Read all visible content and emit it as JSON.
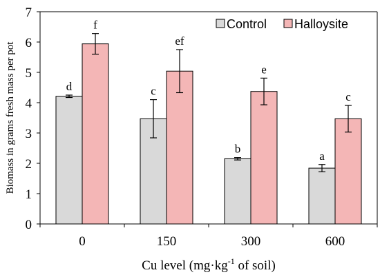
{
  "chart_data": {
    "type": "bar",
    "categories": [
      "0",
      "150",
      "300",
      "600"
    ],
    "series": [
      {
        "name": "Control",
        "color": "#d9d9d9",
        "values": [
          4.21,
          3.47,
          2.15,
          1.84
        ],
        "errors": [
          0.04,
          0.63,
          0.04,
          0.12
        ],
        "letters": [
          "d",
          "c",
          "b",
          "a"
        ]
      },
      {
        "name": "Halloysite",
        "color": "#f4b6b6",
        "values": [
          5.94,
          5.04,
          4.37,
          3.47
        ],
        "errors": [
          0.34,
          0.71,
          0.44,
          0.44
        ],
        "letters": [
          "f",
          "ef",
          "e",
          "c"
        ]
      }
    ],
    "y_ticks": [
      "0",
      "1",
      "2",
      "3",
      "4",
      "5",
      "6",
      "7"
    ],
    "ylim": [
      0,
      7
    ],
    "ylabel": "Biomass in grams fresh mass per pot",
    "xlabel": {
      "prefix": "Cu level (mg·kg",
      "superscript": "-1",
      "suffix": " of soil)"
    },
    "legend_placement": "top-right",
    "grid": false
  }
}
